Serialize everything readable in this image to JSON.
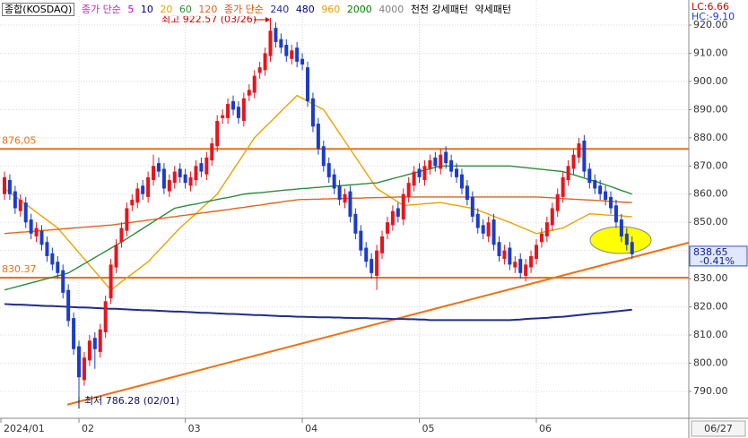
{
  "chart_data": {
    "type": "candlestick",
    "title": "종합(KOSDAQ)",
    "categories": [
      "2024/01",
      null,
      null,
      null,
      null,
      null,
      null,
      null,
      null,
      null,
      null,
      null,
      null,
      null,
      "02",
      null,
      null,
      null,
      null,
      null,
      null,
      null,
      null,
      null,
      null,
      null,
      null,
      null,
      null,
      null,
      null,
      null,
      null,
      null,
      "03",
      null,
      null,
      null,
      null,
      null,
      null,
      null,
      null,
      null,
      null,
      null,
      null,
      null,
      null,
      null,
      null,
      null,
      null,
      null,
      null,
      null,
      "04",
      null,
      null,
      null,
      null,
      null,
      null,
      null,
      null,
      null,
      null,
      null,
      null,
      null,
      null,
      null,
      null,
      null,
      null,
      null,
      null,
      null,
      "05",
      null,
      null,
      null,
      null,
      null,
      null,
      null,
      null,
      null,
      null,
      null,
      null,
      null,
      null,
      null,
      null,
      null,
      null,
      null,
      null,
      null,
      "06",
      null,
      null,
      null,
      null,
      null,
      null,
      null,
      null,
      null,
      null,
      null,
      null,
      null,
      null,
      null,
      null,
      null,
      null
    ],
    "open": [
      860,
      865,
      861,
      854,
      857,
      851,
      845,
      847,
      843,
      839,
      836,
      833,
      826,
      816,
      806,
      794,
      801,
      809,
      804,
      811,
      823,
      834,
      843,
      847,
      856,
      857,
      863,
      859,
      865,
      871,
      869,
      861,
      864,
      869,
      867,
      863,
      865,
      871,
      867,
      872,
      877,
      887,
      887,
      893,
      891,
      886,
      895,
      896,
      903,
      904,
      909,
      919,
      915,
      913,
      908,
      912,
      908,
      905,
      894,
      885,
      877,
      871,
      867,
      863,
      857,
      861,
      853,
      847,
      841,
      837,
      831,
      839,
      846,
      849,
      855,
      851,
      859,
      863,
      869,
      865,
      869,
      873,
      869,
      875,
      872,
      869,
      867,
      863,
      859,
      853,
      849,
      845,
      851,
      843,
      837,
      841,
      834,
      837,
      831,
      834,
      837,
      843,
      845,
      849,
      854,
      859,
      865,
      869,
      873,
      879,
      869,
      865,
      863,
      861,
      859,
      856,
      851,
      846,
      843
    ],
    "high": [
      868,
      867,
      863,
      860,
      859,
      853,
      850,
      849,
      845,
      841,
      838,
      835,
      828,
      818,
      808,
      804,
      810,
      811,
      814,
      824,
      837,
      844,
      850,
      857,
      860,
      864,
      865,
      868,
      874,
      873,
      871,
      867,
      870,
      871,
      869,
      868,
      872,
      873,
      875,
      880,
      888,
      890,
      894,
      895,
      893,
      896,
      899,
      904,
      907,
      912,
      922.57,
      921,
      917,
      915,
      913,
      914,
      910,
      907,
      896,
      887,
      879,
      873,
      869,
      865,
      862,
      863,
      855,
      849,
      843,
      839,
      842,
      847,
      852,
      856,
      857,
      862,
      866,
      870,
      871,
      872,
      874,
      875,
      876,
      877,
      874,
      871,
      869,
      865,
      861,
      855,
      851,
      852,
      853,
      845,
      842,
      843,
      838,
      839,
      837,
      840,
      844,
      848,
      852,
      857,
      862,
      868,
      872,
      876,
      880,
      881,
      871,
      867,
      865,
      863,
      861,
      858,
      853,
      848,
      845
    ],
    "low": [
      858,
      858,
      853,
      852,
      848,
      844,
      843,
      840,
      836,
      833,
      830,
      823,
      813,
      803,
      786.28,
      792,
      799,
      798,
      802,
      809,
      821,
      832,
      841,
      845,
      854,
      855,
      858,
      857,
      863,
      866,
      860,
      859,
      862,
      864,
      862,
      861,
      863,
      866,
      865,
      870,
      875,
      885,
      885,
      888,
      885,
      884,
      893,
      894,
      901,
      902,
      907,
      912,
      910,
      907,
      906,
      905,
      904,
      891,
      882,
      874,
      868,
      864,
      860,
      856,
      855,
      850,
      844,
      838,
      834,
      830,
      826,
      837,
      844,
      847,
      850,
      849,
      857,
      861,
      864,
      863,
      867,
      868,
      867,
      869,
      866,
      864,
      860,
      856,
      850,
      846,
      844,
      843,
      840,
      836,
      835,
      833,
      832,
      830,
      829,
      832,
      835,
      841,
      843,
      847,
      852,
      857,
      863,
      867,
      871,
      866,
      862,
      860,
      858,
      856,
      853,
      848,
      843,
      840,
      837
    ],
    "close": [
      866,
      860,
      855,
      858,
      850,
      846,
      848,
      842,
      838,
      835,
      832,
      825,
      815,
      805,
      795,
      802,
      808,
      805,
      812,
      822,
      835,
      842,
      848,
      855,
      858,
      862,
      860,
      866,
      870,
      868,
      862,
      865,
      868,
      866,
      864,
      866,
      870,
      868,
      873,
      878,
      886,
      888,
      892,
      890,
      887,
      894,
      897,
      902,
      905,
      910,
      918,
      914,
      912,
      909,
      911,
      907,
      906,
      893,
      884,
      876,
      870,
      866,
      862,
      858,
      860,
      852,
      846,
      840,
      836,
      832,
      840,
      845,
      850,
      854,
      852,
      860,
      864,
      868,
      866,
      870,
      872,
      870,
      874,
      871,
      868,
      866,
      862,
      858,
      852,
      848,
      846,
      850,
      842,
      838,
      840,
      835,
      836,
      832,
      835,
      838,
      842,
      846,
      850,
      855,
      860,
      866,
      870,
      874,
      878,
      868,
      864,
      862,
      860,
      858,
      855,
      850,
      845,
      842,
      838.65
    ],
    "up_color": "#e8141c",
    "down_color": "#1c3cc8",
    "series": [
      {
        "name": "20",
        "color": "#e8a400",
        "values": [
          862,
          860.6,
          859.2,
          857.8,
          856.4,
          855,
          853.6,
          852.2,
          850.8,
          849.4,
          848,
          845.8,
          843.6,
          841.4,
          839.2,
          837,
          834.8,
          832.6,
          830.4,
          828.2,
          826,
          827.4,
          828.9,
          830.3,
          831.7,
          833.1,
          834.6,
          836,
          838,
          840,
          842,
          844,
          846,
          848,
          849.7,
          851.4,
          853.1,
          854.9,
          856.6,
          858.3,
          860,
          862.9,
          865.7,
          868.6,
          871.4,
          874.3,
          877.1,
          880,
          881.9,
          883.8,
          885.6,
          887.5,
          889.4,
          891.3,
          893.1,
          895,
          894,
          893,
          892,
          891,
          890,
          887.2,
          884.4,
          881.6,
          878.8,
          876,
          873.2,
          870.4,
          867.6,
          864.8,
          862,
          860.8,
          859.6,
          858.4,
          857.2,
          856,
          856.1,
          856.3,
          856.4,
          856.6,
          856.7,
          856.9,
          857,
          856.7,
          856.3,
          856,
          855.7,
          855.3,
          855,
          854.3,
          853.6,
          852.9,
          852.1,
          851.4,
          850.7,
          850,
          849.2,
          848.4,
          847.6,
          846.8,
          846,
          846.4,
          846.8,
          847.2,
          847.6,
          848,
          849,
          850,
          851,
          852,
          853,
          852.9,
          852.8,
          852.6,
          852.5,
          852.4,
          852.3,
          852.1,
          852
        ]
      },
      {
        "name": "60",
        "color": "#2e8b3e",
        "values": [
          826,
          826.5,
          827,
          827.5,
          828,
          828.5,
          829,
          829.5,
          830,
          830.5,
          831,
          831.5,
          832,
          833.1,
          834.2,
          835.3,
          836.4,
          837.5,
          838.6,
          839.7,
          840.8,
          841.9,
          843,
          844.2,
          845.4,
          846.6,
          847.8,
          849,
          850.2,
          851.4,
          852.6,
          853.8,
          855,
          855.4,
          855.8,
          856.2,
          856.5,
          856.9,
          857.3,
          857.7,
          858.1,
          858.5,
          858.8,
          859.2,
          859.6,
          860,
          860.2,
          860.4,
          860.5,
          860.7,
          860.9,
          861.1,
          861.3,
          861.5,
          861.6,
          861.8,
          862,
          862.1,
          862.3,
          862.4,
          862.6,
          862.7,
          862.9,
          863,
          863.1,
          863.3,
          863.4,
          863.6,
          863.7,
          863.9,
          864,
          864.5,
          865,
          865.5,
          866,
          866.5,
          867,
          867.5,
          868,
          868.5,
          869,
          869.5,
          870,
          870,
          870,
          870,
          870,
          870,
          870,
          870,
          870,
          870,
          870,
          870,
          870,
          870,
          869.8,
          869.6,
          869.4,
          869.2,
          869,
          868.8,
          868.6,
          868.4,
          868.2,
          868,
          867.4,
          866.9,
          866.3,
          865.7,
          865.1,
          864.6,
          864,
          863.3,
          862.7,
          862,
          861.3,
          860.7,
          860
        ]
      },
      {
        "name": "120",
        "color": "#e0641a",
        "values": [
          846,
          846.2,
          846.3,
          846.5,
          846.6,
          846.8,
          846.9,
          847.1,
          847.2,
          847.4,
          847.5,
          847.7,
          847.8,
          848,
          848.1,
          848.3,
          848.4,
          848.6,
          848.7,
          848.9,
          849,
          849.3,
          849.5,
          849.8,
          850,
          850.3,
          850.5,
          850.8,
          851,
          851.3,
          851.5,
          851.8,
          852,
          852.3,
          852.5,
          852.8,
          853,
          853.3,
          853.5,
          853.8,
          854,
          854.3,
          854.5,
          854.8,
          855.1,
          855.3,
          855.6,
          855.9,
          856.1,
          856.4,
          856.7,
          856.9,
          857.2,
          857.5,
          857.7,
          858,
          858.1,
          858.1,
          858.2,
          858.2,
          858.3,
          858.3,
          858.4,
          858.4,
          858.5,
          858.5,
          858.6,
          858.6,
          858.7,
          858.7,
          858.8,
          858.8,
          858.9,
          858.9,
          859,
          859,
          859,
          859,
          859,
          859,
          859,
          859,
          859,
          859,
          859,
          859,
          859,
          859,
          859,
          859,
          859,
          859,
          859,
          859,
          859,
          859,
          859,
          859,
          859,
          859,
          859,
          858.9,
          858.8,
          858.7,
          858.6,
          858.4,
          858.3,
          858.2,
          858.1,
          858,
          857.9,
          857.8,
          857.7,
          857.6,
          857.4,
          857.3,
          857.2,
          857.1,
          857
        ]
      },
      {
        "name": "240",
        "color": "#1f2d8c",
        "values": [
          821,
          820.9,
          820.8,
          820.8,
          820.7,
          820.6,
          820.5,
          820.4,
          820.3,
          820.3,
          820.2,
          820.1,
          820,
          819.9,
          819.8,
          819.8,
          819.7,
          819.6,
          819.5,
          819.4,
          819.3,
          819.3,
          819.2,
          819.1,
          819,
          818.9,
          818.8,
          818.8,
          818.7,
          818.6,
          818.5,
          818.4,
          818.3,
          818.3,
          818.2,
          818.1,
          818,
          817.9,
          817.9,
          817.8,
          817.7,
          817.6,
          817.5,
          817.5,
          817.4,
          817.3,
          817.2,
          817.1,
          817.1,
          817,
          816.9,
          816.8,
          816.7,
          816.7,
          816.6,
          816.5,
          816.5,
          816.4,
          816.4,
          816.3,
          816.3,
          816.3,
          816.2,
          816.2,
          816.1,
          816.1,
          816,
          816,
          816,
          815.9,
          815.9,
          815.8,
          815.8,
          815.7,
          815.7,
          815.7,
          815.6,
          815.6,
          815.5,
          815.5,
          815.3,
          815.3,
          815.3,
          815.3,
          815.3,
          815.3,
          815.3,
          815.3,
          815.3,
          815.3,
          815.3,
          815.3,
          815.3,
          815.3,
          815.3,
          815.3,
          815.4,
          815.5,
          815.7,
          815.8,
          815.9,
          816,
          816.1,
          816.3,
          816.4,
          816.5,
          816.7,
          816.9,
          817.1,
          817.3,
          817.5,
          817.7,
          817.8,
          818,
          818.2,
          818.4,
          818.6,
          818.8,
          819
        ]
      }
    ],
    "legend_extra": [
      {
        "label": "종가 단순",
        "color": "#b030b0"
      },
      {
        "label": "5",
        "color": "#c000c0"
      },
      {
        "label": "10",
        "color": "#000080"
      },
      {
        "label": "종가 단순",
        "color": "#e05000"
      },
      {
        "label": "480",
        "color": "#000080"
      },
      {
        "label": "960",
        "color": "#e0a000"
      },
      {
        "label": "2000",
        "color": "#008000"
      },
      {
        "label": "4000",
        "color": "#808080"
      },
      {
        "label": "천천 강세패턴",
        "color": "#000000"
      },
      {
        "label": "약세패턴",
        "color": "#000000"
      }
    ],
    "hlines": [
      {
        "value": 876.05,
        "label": "876,05"
      },
      {
        "value": 830.37,
        "label": "830.37"
      }
    ],
    "hline_color": "#f07010",
    "trendline": [
      785.3,
      842.8
    ],
    "high_annotation": "최고 922.57 (03/26)",
    "low_annotation": "최저 786.28 (02/01)",
    "lc_label": "LC:6.66",
    "hc_label": "HC:-9.10",
    "change_label": "-0.41%",
    "last_date": "06/27",
    "ylim": [
      780.45,
      928.9
    ],
    "yticks": [
      {
        "value": 790,
        "label": "790.00"
      },
      {
        "value": 800,
        "label": "800.00"
      },
      {
        "value": 810,
        "label": "810.00"
      },
      {
        "value": 820,
        "label": "820.00"
      },
      {
        "value": 830,
        "label": "830.00"
      },
      {
        "value": 840,
        "label": "840.00"
      },
      {
        "value": 850,
        "label": "850.00"
      },
      {
        "value": 860,
        "label": "860.00"
      },
      {
        "value": 870,
        "label": "870.00"
      },
      {
        "value": 880,
        "label": "880.00"
      },
      {
        "value": 890,
        "label": "890.00"
      },
      {
        "value": 900,
        "label": "900.00"
      },
      {
        "value": 910,
        "label": "910.00"
      },
      {
        "value": 920,
        "label": "920.00"
      }
    ],
    "grid": true
  }
}
